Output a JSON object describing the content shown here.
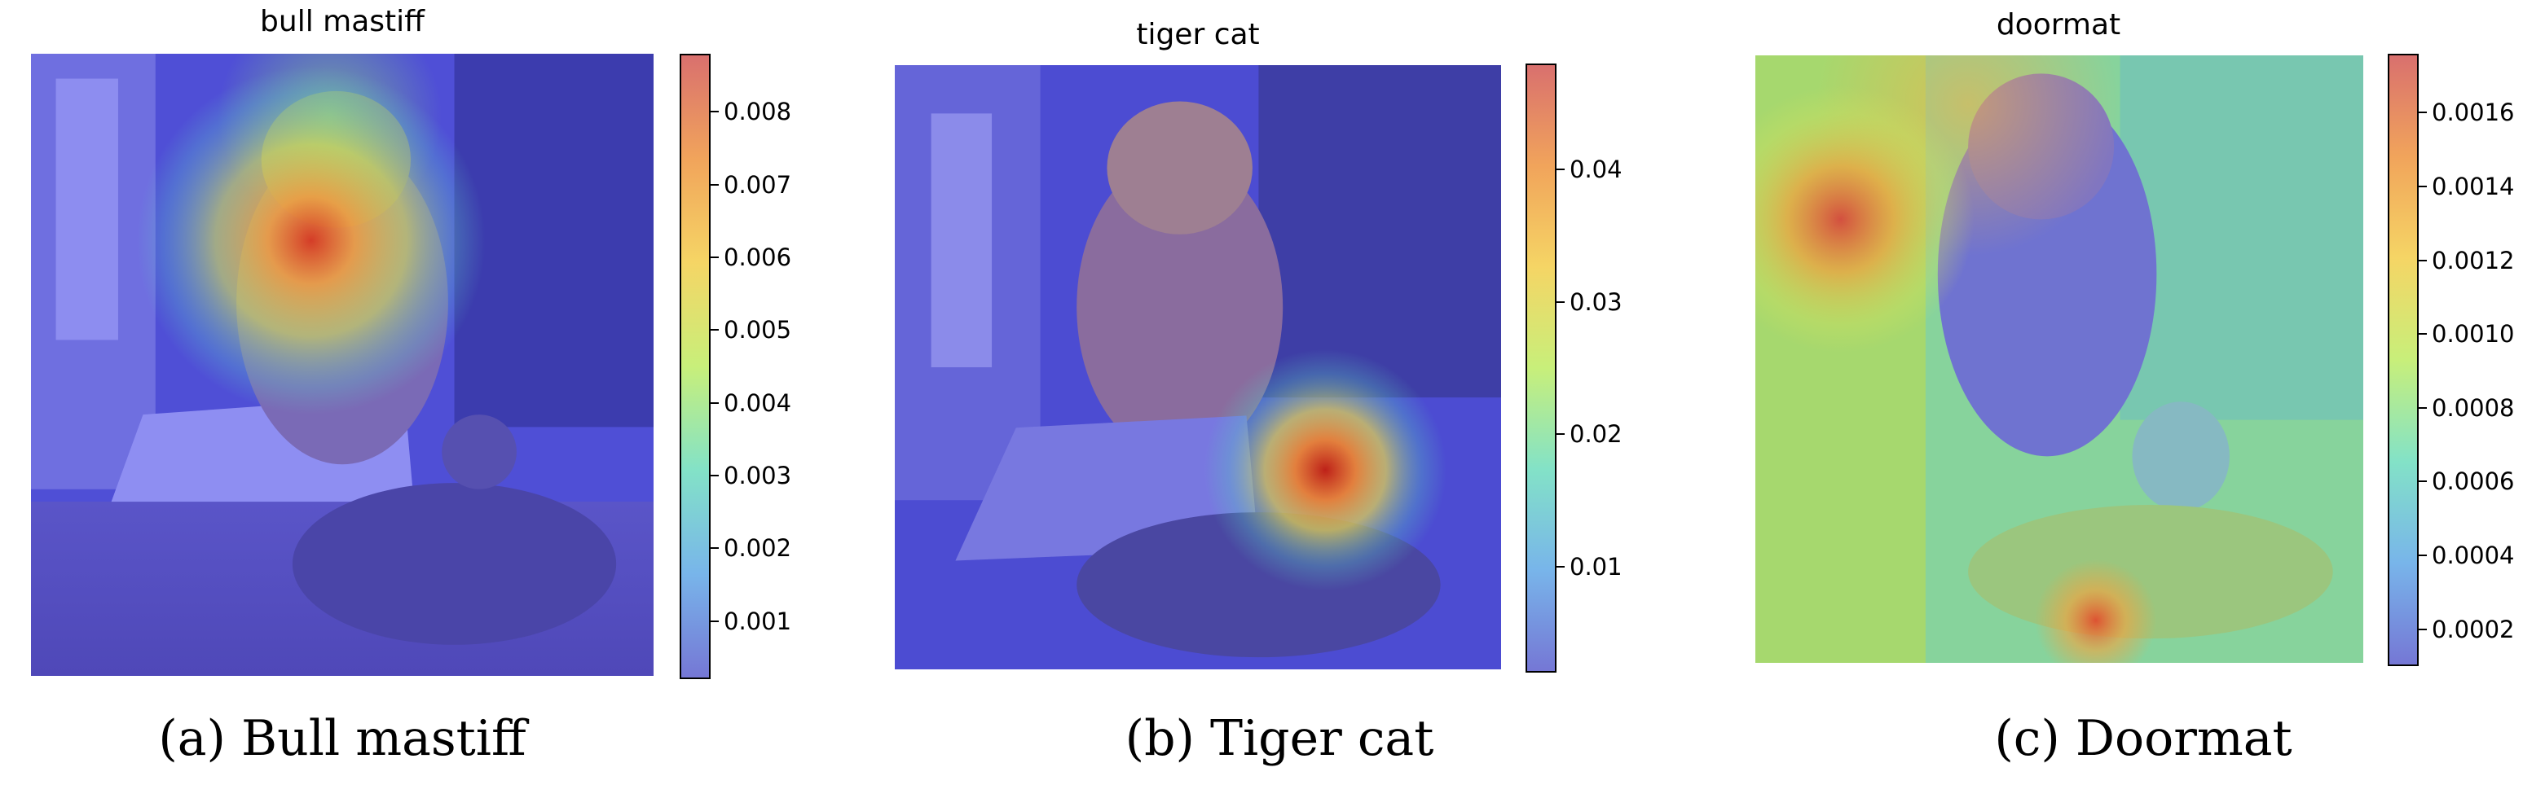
{
  "panels": [
    {
      "title": "bull mastiff",
      "caption": "(a)  Bull mastiff",
      "colorbar": {
        "min": 0.0002,
        "max": 0.0088,
        "ticks": [
          "0.008",
          "0.007",
          "0.006",
          "0.005",
          "0.004",
          "0.003",
          "0.002",
          "0.001"
        ],
        "tick_values": [
          0.008,
          0.007,
          0.006,
          0.005,
          0.004,
          0.003,
          0.002,
          0.001
        ]
      }
    },
    {
      "title": "tiger cat",
      "caption": "(b)  Tiger cat",
      "colorbar": {
        "min": 0.002,
        "max": 0.048,
        "ticks": [
          "0.04",
          "0.03",
          "0.02",
          "0.01"
        ],
        "tick_values": [
          0.04,
          0.03,
          0.02,
          0.01
        ]
      }
    },
    {
      "title": "doormat",
      "caption": "(c)  Doormat",
      "colorbar": {
        "min": 0.0001,
        "max": 0.00176,
        "ticks": [
          "0.0016",
          "0.0014",
          "0.0012",
          "0.0010",
          "0.0008",
          "0.0006",
          "0.0004",
          "0.0002"
        ],
        "tick_values": [
          0.0016,
          0.0014,
          0.0012,
          0.001,
          0.0008,
          0.0006,
          0.0004,
          0.0002
        ]
      }
    }
  ],
  "colormap": [
    "#30123b",
    "#4662d7",
    "#35abf8",
    "#1ae4b6",
    "#72fe5e",
    "#c8ef34",
    "#faba39",
    "#f66b19",
    "#ca2a04",
    "#7a0403"
  ]
}
